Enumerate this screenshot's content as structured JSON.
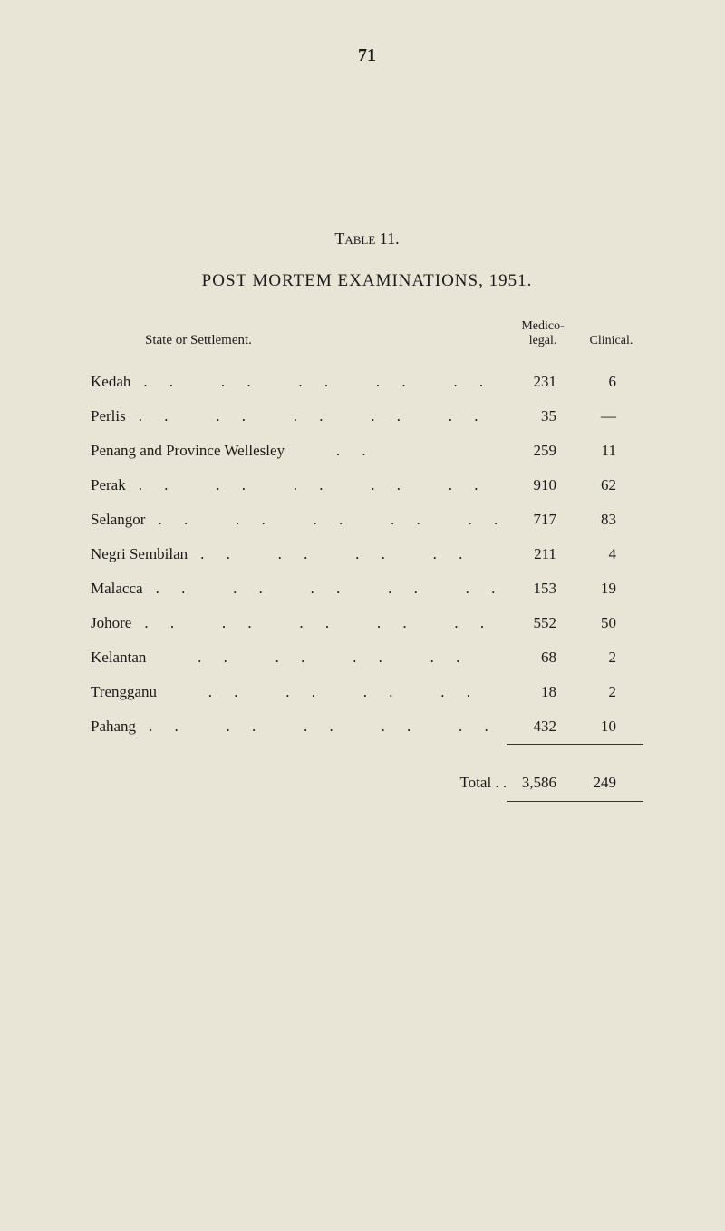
{
  "page_number": "71",
  "table_label": "Table 11.",
  "title": "POST MORTEM EXAMINATIONS, 1951.",
  "columns": {
    "state": "State or Settlement.",
    "medico": "Medico-\nlegal.",
    "clinical": "Clinical."
  },
  "rows": [
    {
      "state": "Kedah",
      "dots": ". .   . .   . .   . .   . .",
      "medico": "231",
      "clinical": "6"
    },
    {
      "state": "Perlis",
      "dots": ". .   . .   . .   . .   . .",
      "medico": "35",
      "clinical": "—"
    },
    {
      "state": "Penang and Province Wellesley",
      "dots": "   . .",
      "medico": "259",
      "clinical": "11"
    },
    {
      "state": "Perak",
      "dots": ". .   . .   . .   . .   . .",
      "medico": "910",
      "clinical": "62"
    },
    {
      "state": "Selangor",
      "dots": ". .   . .   . .   . .   . .",
      "medico": "717",
      "clinical": "83"
    },
    {
      "state": "Negri Sembilan",
      "dots": ". .   . .   . .   . .",
      "medico": "211",
      "clinical": "4"
    },
    {
      "state": "Malacca",
      "dots": ". .   . .   . .   . .   . .",
      "medico": "153",
      "clinical": "19"
    },
    {
      "state": "Johore",
      "dots": ". .   . .   . .   . .   . .",
      "medico": "552",
      "clinical": "50"
    },
    {
      "state": "Kelantan",
      "dots": "   . .   . .   . .   . .",
      "medico": "68",
      "clinical": "2"
    },
    {
      "state": "Trengganu",
      "dots": "   . .   . .   . .   . .",
      "medico": "18",
      "clinical": "2"
    },
    {
      "state": "Pahang",
      "dots": ". .   . .   . .   . .   . .",
      "medico": "432",
      "clinical": "10"
    }
  ],
  "total": {
    "label": "Total   . .",
    "medico": "3,586",
    "clinical": "249"
  },
  "colors": {
    "background": "#e8e4d6",
    "text": "#1a1a1a",
    "rule": "#333333"
  }
}
